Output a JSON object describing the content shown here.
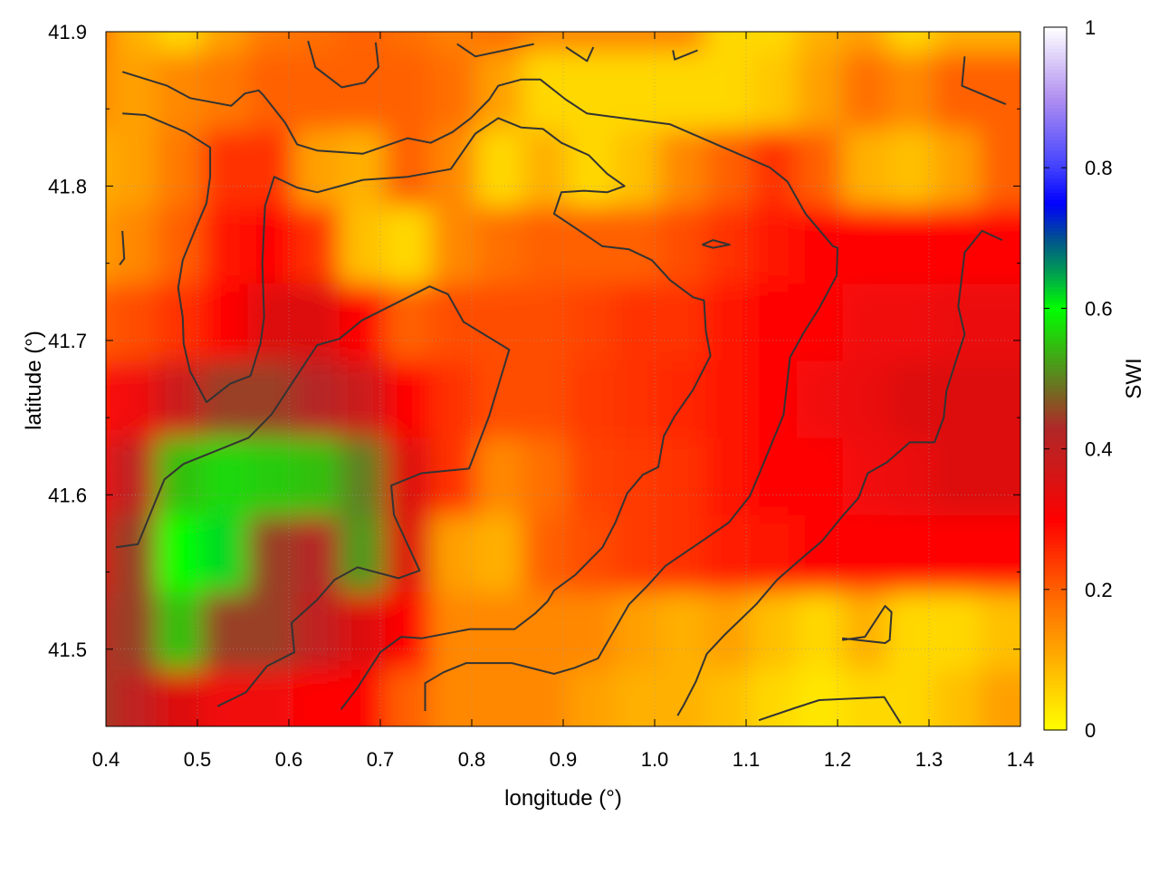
{
  "chart_data": {
    "type": "heatmap",
    "title": "",
    "xlabel": "longitude (°)",
    "ylabel": "latitude (°)",
    "colorbar_label": "SWI",
    "xlim": [
      0.4,
      1.4
    ],
    "ylim": [
      41.45,
      41.9
    ],
    "clim": [
      0,
      1
    ],
    "grid": true,
    "x_ticks": [
      "0.4",
      "0.5",
      "0.6",
      "0.7",
      "0.8",
      "0.9",
      "1.0",
      "1.1",
      "1.2",
      "1.3",
      "1.4"
    ],
    "y_ticks": [
      "41.5",
      "41.6",
      "41.7",
      "41.8",
      "41.9"
    ],
    "colorbar_ticks": [
      "0",
      "0.2",
      "0.4",
      "0.6",
      "0.8",
      "1"
    ],
    "colormap": [
      [
        0,
        "#ffff00"
      ],
      [
        0.1,
        "#ffb000"
      ],
      [
        0.2,
        "#ff6000"
      ],
      [
        0.3,
        "#ff0000"
      ],
      [
        0.37,
        "#d01818"
      ],
      [
        0.43,
        "#b02828"
      ],
      [
        0.5,
        "#608020"
      ],
      [
        0.6,
        "#00ff00"
      ],
      [
        0.65,
        "#00a050"
      ],
      [
        0.7,
        "#005090"
      ],
      [
        0.75,
        "#0000ff"
      ],
      [
        0.8,
        "#4040ff"
      ],
      [
        0.9,
        "#b090f0"
      ],
      [
        1,
        "#ffffff"
      ]
    ],
    "lon": [
      0.4,
      0.45,
      0.5,
      0.55,
      0.6,
      0.65,
      0.7,
      0.75,
      0.8,
      0.85,
      0.9,
      0.95,
      1.0,
      1.05,
      1.1,
      1.15,
      1.2,
      1.25,
      1.3,
      1.35,
      1.4
    ],
    "lat": [
      41.9,
      41.85,
      41.8,
      41.75,
      41.7,
      41.65,
      41.6,
      41.55,
      41.5,
      41.45
    ],
    "values": [
      [
        0.2,
        0.1,
        0.05,
        0.12,
        0.17,
        0.18,
        0.2,
        0.18,
        0.16,
        0.18,
        0.15,
        0.15,
        0.15,
        0.15,
        0.05,
        0.05,
        0.1,
        0.12,
        0.05,
        0.1,
        0.1
      ],
      [
        0.15,
        0.12,
        0.15,
        0.17,
        0.2,
        0.2,
        0.2,
        0.2,
        0.18,
        0.12,
        0.05,
        0.05,
        0.05,
        0.05,
        0.05,
        0.07,
        0.12,
        0.18,
        0.15,
        0.2,
        0.2
      ],
      [
        0.1,
        0.12,
        0.17,
        0.25,
        0.25,
        0.12,
        0.1,
        0.2,
        0.15,
        0.05,
        0.1,
        0.05,
        0.08,
        0.15,
        0.2,
        0.25,
        0.2,
        0.1,
        0.08,
        0.12,
        0.2
      ],
      [
        0.12,
        0.15,
        0.2,
        0.28,
        0.3,
        0.25,
        0.08,
        0.05,
        0.15,
        0.18,
        0.2,
        0.2,
        0.2,
        0.22,
        0.25,
        0.28,
        0.3,
        0.3,
        0.3,
        0.3,
        0.3
      ],
      [
        0.2,
        0.22,
        0.25,
        0.3,
        0.35,
        0.35,
        0.3,
        0.2,
        0.22,
        0.22,
        0.22,
        0.23,
        0.25,
        0.25,
        0.28,
        0.3,
        0.3,
        0.32,
        0.32,
        0.33,
        0.33
      ],
      [
        0.28,
        0.32,
        0.38,
        0.45,
        0.45,
        0.42,
        0.38,
        0.3,
        0.25,
        0.22,
        0.22,
        0.24,
        0.25,
        0.26,
        0.28,
        0.3,
        0.32,
        0.33,
        0.35,
        0.35,
        0.35
      ],
      [
        0.32,
        0.4,
        0.55,
        0.57,
        0.56,
        0.55,
        0.5,
        0.35,
        0.25,
        0.15,
        0.18,
        0.23,
        0.24,
        0.25,
        0.28,
        0.3,
        0.3,
        0.32,
        0.33,
        0.35,
        0.35
      ],
      [
        0.35,
        0.45,
        0.6,
        0.62,
        0.45,
        0.42,
        0.52,
        0.35,
        0.12,
        0.1,
        0.2,
        0.22,
        0.24,
        0.25,
        0.27,
        0.28,
        0.3,
        0.3,
        0.3,
        0.3,
        0.3
      ],
      [
        0.4,
        0.45,
        0.55,
        0.45,
        0.45,
        0.4,
        0.35,
        0.3,
        0.15,
        0.15,
        0.15,
        0.15,
        0.12,
        0.1,
        0.12,
        0.08,
        0.05,
        0.1,
        0.05,
        0.05,
        0.08
      ],
      [
        0.45,
        0.4,
        0.35,
        0.32,
        0.32,
        0.3,
        0.3,
        0.2,
        0.15,
        0.15,
        0.15,
        0.12,
        0.1,
        0.1,
        0.08,
        0.05,
        0.03,
        0.05,
        0.05,
        0.08,
        0.12
      ]
    ],
    "contour_color": "#333333",
    "contours": [
      [
        [
          0.411,
          41.566
        ],
        [
          0.435,
          41.568
        ],
        [
          0.464,
          41.61
        ],
        [
          0.485,
          41.62
        ],
        [
          0.556,
          41.637
        ],
        [
          0.581,
          41.652
        ],
        [
          0.631,
          41.697
        ],
        [
          0.655,
          41.701
        ],
        [
          0.68,
          41.713
        ],
        [
          0.754,
          41.735
        ],
        [
          0.774,
          41.73
        ],
        [
          0.791,
          41.712
        ],
        [
          0.841,
          41.694
        ],
        [
          0.819,
          41.651
        ],
        [
          0.797,
          41.617
        ],
        [
          0.745,
          41.614
        ],
        [
          0.712,
          41.606
        ],
        [
          0.715,
          41.587
        ],
        [
          0.743,
          41.551
        ],
        [
          0.72,
          41.546
        ],
        [
          0.675,
          41.553
        ],
        [
          0.65,
          41.545
        ],
        [
          0.631,
          41.532
        ],
        [
          0.603,
          41.517
        ],
        [
          0.606,
          41.498
        ],
        [
          0.576,
          41.489
        ],
        [
          0.553,
          41.472
        ],
        [
          0.522,
          41.463
        ]
      ],
      [
        [
          0.418,
          41.874
        ],
        [
          0.467,
          41.865
        ],
        [
          0.492,
          41.857
        ],
        [
          0.537,
          41.852
        ],
        [
          0.552,
          41.86
        ],
        [
          0.567,
          41.862
        ],
        [
          0.572,
          41.859
        ],
        [
          0.596,
          41.841
        ],
        [
          0.609,
          41.827
        ],
        [
          0.631,
          41.823
        ],
        [
          0.681,
          41.821
        ],
        [
          0.73,
          41.831
        ],
        [
          0.755,
          41.828
        ],
        [
          0.779,
          41.835
        ],
        [
          0.799,
          41.844
        ],
        [
          0.819,
          41.856
        ],
        [
          0.829,
          41.865
        ],
        [
          0.854,
          41.869
        ],
        [
          0.875,
          41.869
        ],
        [
          0.903,
          41.856
        ],
        [
          0.926,
          41.847
        ],
        [
          1.017,
          41.84
        ],
        [
          1.091,
          41.821
        ],
        [
          1.126,
          41.812
        ],
        [
          1.145,
          41.803
        ],
        [
          1.165,
          41.782
        ],
        [
          1.195,
          41.761
        ],
        [
          1.2,
          41.76
        ],
        [
          1.199,
          41.742
        ],
        [
          1.18,
          41.721
        ],
        [
          1.163,
          41.705
        ],
        [
          1.148,
          41.689
        ],
        [
          1.141,
          41.652
        ],
        [
          1.116,
          41.616
        ],
        [
          1.104,
          41.599
        ],
        [
          1.081,
          41.582
        ],
        [
          1.059,
          41.573
        ],
        [
          1.012,
          41.554
        ],
        [
          0.992,
          41.541
        ],
        [
          0.972,
          41.529
        ],
        [
          0.938,
          41.494
        ],
        [
          0.913,
          41.488
        ],
        [
          0.89,
          41.484
        ],
        [
          0.844,
          41.491
        ],
        [
          0.794,
          41.491
        ],
        [
          0.769,
          41.485
        ],
        [
          0.749,
          41.478
        ],
        [
          0.749,
          41.46
        ]
      ],
      [
        [
          0.418,
          41.847
        ],
        [
          0.443,
          41.846
        ],
        [
          0.487,
          41.835
        ],
        [
          0.514,
          41.825
        ],
        [
          0.514,
          41.806
        ],
        [
          0.51,
          41.789
        ],
        [
          0.497,
          41.771
        ],
        [
          0.484,
          41.752
        ],
        [
          0.479,
          41.734
        ],
        [
          0.484,
          41.715
        ],
        [
          0.485,
          41.698
        ],
        [
          0.492,
          41.68
        ],
        [
          0.51,
          41.66
        ],
        [
          0.536,
          41.672
        ],
        [
          0.558,
          41.677
        ],
        [
          0.569,
          41.698
        ],
        [
          0.573,
          41.715
        ],
        [
          0.571,
          41.75
        ],
        [
          0.574,
          41.787
        ],
        [
          0.584,
          41.806
        ],
        [
          0.609,
          41.799
        ],
        [
          0.631,
          41.796
        ],
        [
          0.681,
          41.804
        ],
        [
          0.73,
          41.806
        ],
        [
          0.777,
          41.811
        ],
        [
          0.804,
          41.834
        ],
        [
          0.829,
          41.844
        ],
        [
          0.854,
          41.838
        ],
        [
          0.878,
          41.837
        ],
        [
          0.898,
          41.828
        ],
        [
          0.928,
          41.82
        ],
        [
          0.948,
          41.808
        ],
        [
          0.967,
          41.8
        ],
        [
          0.948,
          41.796
        ],
        [
          0.923,
          41.797
        ],
        [
          0.898,
          41.796
        ],
        [
          0.89,
          41.782
        ],
        [
          0.918,
          41.771
        ],
        [
          0.943,
          41.761
        ],
        [
          0.972,
          41.759
        ],
        [
          0.997,
          41.752
        ],
        [
          1.017,
          41.739
        ],
        [
          1.042,
          41.728
        ],
        [
          1.054,
          41.726
        ],
        [
          1.056,
          41.706
        ],
        [
          1.061,
          41.69
        ],
        [
          1.042,
          41.668
        ],
        [
          1.022,
          41.651
        ],
        [
          1.01,
          41.638
        ],
        [
          1.004,
          41.618
        ],
        [
          0.987,
          41.613
        ],
        [
          0.97,
          41.601
        ],
        [
          0.957,
          41.582
        ],
        [
          0.943,
          41.566
        ],
        [
          0.913,
          41.548
        ],
        [
          0.89,
          41.538
        ],
        [
          0.883,
          41.531
        ],
        [
          0.869,
          41.523
        ],
        [
          0.847,
          41.513
        ],
        [
          0.798,
          41.513
        ],
        [
          0.745,
          41.507
        ],
        [
          0.723,
          41.508
        ],
        [
          0.7,
          41.498
        ],
        [
          0.675,
          41.475
        ],
        [
          0.657,
          41.461
        ]
      ],
      [
        [
          1.38,
          41.765
        ],
        [
          1.358,
          41.771
        ],
        [
          1.339,
          41.757
        ],
        [
          1.332,
          41.722
        ],
        [
          1.339,
          41.704
        ],
        [
          1.329,
          41.686
        ],
        [
          1.319,
          41.667
        ],
        [
          1.316,
          41.65
        ],
        [
          1.306,
          41.634
        ],
        [
          1.279,
          41.634
        ],
        [
          1.254,
          41.621
        ],
        [
          1.233,
          41.614
        ],
        [
          1.223,
          41.598
        ],
        [
          1.205,
          41.586
        ],
        [
          1.183,
          41.57
        ],
        [
          1.165,
          41.561
        ],
        [
          1.134,
          41.545
        ],
        [
          1.111,
          41.529
        ],
        [
          1.076,
          41.509
        ],
        [
          1.057,
          41.497
        ],
        [
          1.045,
          41.479
        ],
        [
          1.032,
          41.464
        ],
        [
          1.025,
          41.457
        ]
      ],
      [
        [
          1.114,
          41.454
        ],
        [
          1.154,
          41.462
        ],
        [
          1.18,
          41.467
        ],
        [
          1.251,
          41.469
        ],
        [
          1.269,
          41.452
        ]
      ],
      [
        [
          1.205,
          41.506
        ],
        [
          1.23,
          41.508
        ],
        [
          1.252,
          41.528
        ],
        [
          1.259,
          41.524
        ],
        [
          1.257,
          41.506
        ],
        [
          1.252,
          41.504
        ],
        [
          1.205,
          41.507
        ]
      ],
      [
        [
          0.621,
          41.894
        ],
        [
          0.629,
          41.877
        ],
        [
          0.658,
          41.864
        ],
        [
          0.683,
          41.867
        ],
        [
          0.698,
          41.877
        ],
        [
          0.695,
          41.893
        ]
      ],
      [
        [
          0.784,
          41.892
        ],
        [
          0.804,
          41.884
        ],
        [
          0.868,
          41.892
        ]
      ],
      [
        [
          0.903,
          41.89
        ],
        [
          0.926,
          41.881
        ],
        [
          0.933,
          41.89
        ]
      ],
      [
        [
          1.02,
          41.888
        ],
        [
          1.022,
          41.882
        ],
        [
          1.047,
          41.888
        ]
      ],
      [
        [
          1.339,
          41.884
        ],
        [
          1.336,
          41.865
        ],
        [
          1.384,
          41.853
        ]
      ],
      [
        [
          0.418,
          41.771
        ],
        [
          0.42,
          41.753
        ],
        [
          0.415,
          41.749
        ]
      ],
      [
        [
          1.052,
          41.762
        ],
        [
          1.064,
          41.765
        ],
        [
          1.082,
          41.762
        ],
        [
          1.064,
          41.76
        ],
        [
          1.052,
          41.762
        ]
      ]
    ]
  }
}
